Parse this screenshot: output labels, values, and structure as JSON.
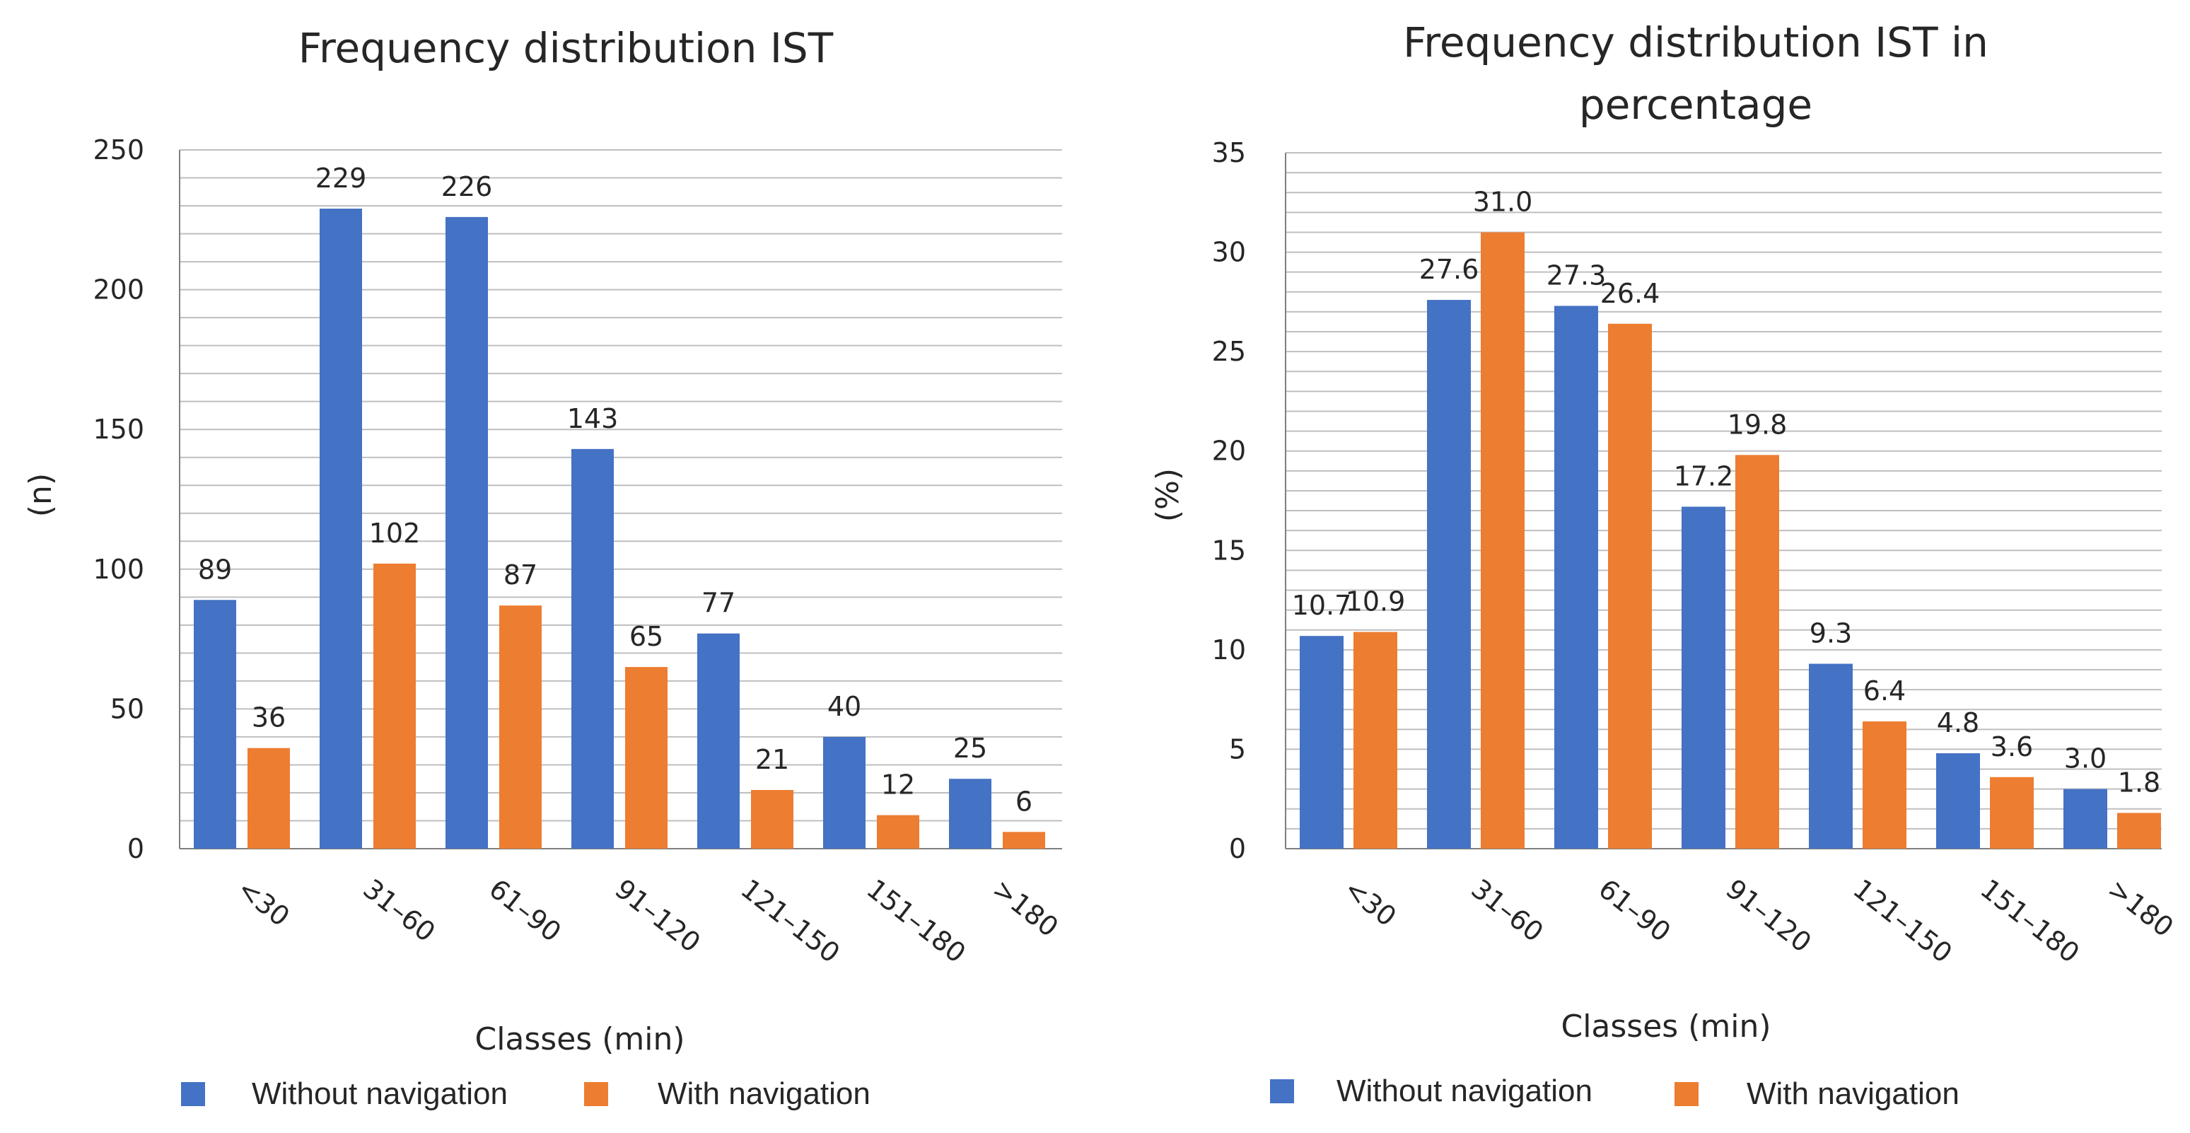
{
  "colors": {
    "without": "#4472C4",
    "with": "#ED7D31",
    "grid": "#BFBFBF",
    "axis": "#7F7F7F",
    "text": "#262626"
  },
  "chart_data": [
    {
      "type": "bar",
      "title": "Frequency distribution IST",
      "xlabel": "Classes (min)",
      "ylabel": "(n)",
      "ylim": [
        0,
        250
      ],
      "major_ticks": [
        0,
        50,
        100,
        150,
        200,
        250
      ],
      "minor_step": 10,
      "grid": true,
      "legend_position": "bottom",
      "categories": [
        "<30",
        "31–60",
        "61–90",
        "91–120",
        "121–150",
        "151–180",
        ">180"
      ],
      "series": [
        {
          "name": "Without navigation",
          "color": "#4472C4",
          "values": [
            89,
            229,
            226,
            143,
            77,
            40,
            25
          ],
          "labels": [
            "89",
            "229",
            "226",
            "143",
            "77",
            "40",
            "25"
          ]
        },
        {
          "name": "With navigation",
          "color": "#ED7D31",
          "values": [
            36,
            102,
            87,
            65,
            21,
            12,
            6
          ],
          "labels": [
            "36",
            "102",
            "87",
            "65",
            "21",
            "12",
            "6"
          ]
        }
      ]
    },
    {
      "type": "bar",
      "title": "Frequency distribution IST in percentage",
      "xlabel": "Classes (min)",
      "ylabel": "(%)",
      "ylim": [
        0,
        35
      ],
      "major_ticks": [
        0,
        5,
        10,
        15,
        20,
        25,
        30,
        35
      ],
      "minor_step": 1,
      "grid": true,
      "legend_position": "bottom",
      "categories": [
        "<30",
        "31–60",
        "61–90",
        "91–120",
        "121–150",
        "151–180",
        ">180"
      ],
      "series": [
        {
          "name": "Without navigation",
          "color": "#4472C4",
          "values": [
            10.7,
            27.6,
            27.3,
            17.2,
            9.3,
            4.8,
            3.0
          ],
          "labels": [
            "10.7",
            "27.6",
            "27.3",
            "17.2",
            "9.3",
            "4.8",
            "3.0"
          ]
        },
        {
          "name": "With navigation",
          "color": "#ED7D31",
          "values": [
            10.9,
            31.0,
            26.4,
            19.8,
            6.4,
            3.6,
            1.8
          ],
          "labels": [
            "10.9",
            "31.0",
            "26.4",
            "19.8",
            "6.4",
            "3.6",
            "1.8"
          ]
        }
      ]
    }
  ]
}
